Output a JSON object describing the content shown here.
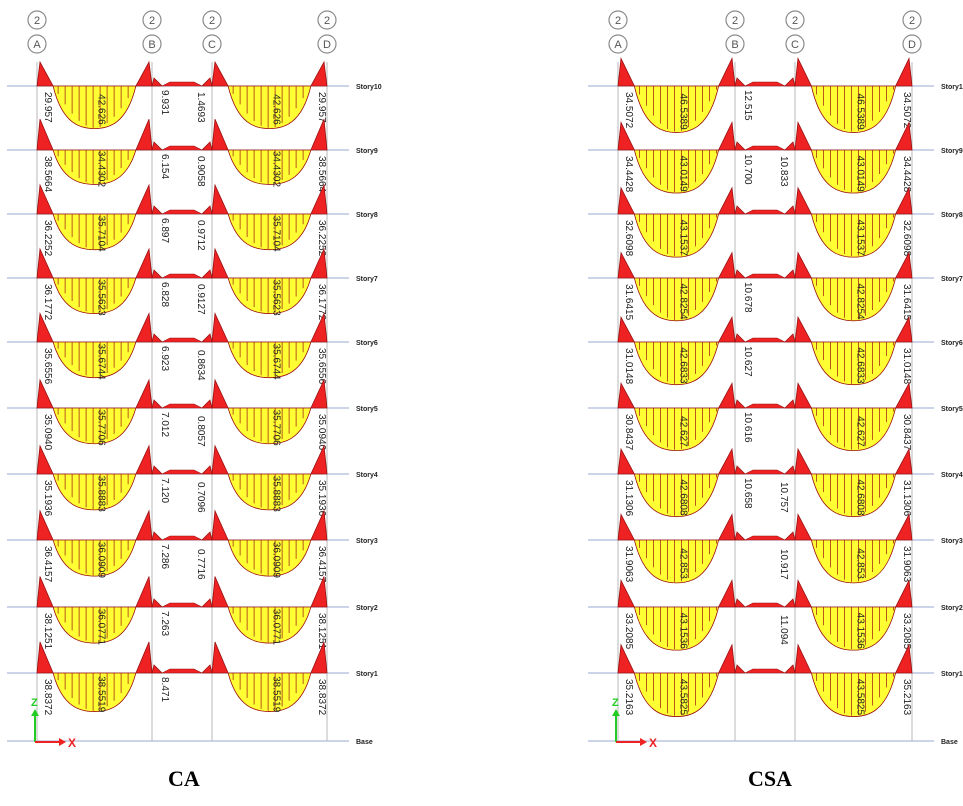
{
  "colors": {
    "gridline": "#9aa9d6",
    "column": "#b8b8b8",
    "fill_yellow": "#ffff33",
    "fill_red": "#ee2222",
    "outline": "#9b1010",
    "axis_z": "#22cc22",
    "axis_x": "#ee2222",
    "bubble": "#8a8a8a"
  },
  "stories": [
    "Story10",
    "Story9",
    "Story8",
    "Story7",
    "Story6",
    "Story5",
    "Story4",
    "Story3",
    "Story2",
    "Story1",
    "Base"
  ],
  "panels": [
    {
      "caption": "CA",
      "axis_top_labels": [
        "2",
        "2",
        "2",
        "2"
      ],
      "axis_bottom_labels": [
        "A",
        "B",
        "C",
        "D"
      ],
      "support_labels": [
        "29.957",
        "29.957"
      ],
      "rows": [
        {
          "left_support": "29.957",
          "left_mid": "42.626",
          "mid_neg": "9.931",
          "mid_pos": "",
          "right_mid": "42.626",
          "right_support": "29.957"
        },
        {
          "left_support": "38.5664",
          "left_mid": "34.4302",
          "mid_neg": "6.154",
          "mid_pos": "1.4693",
          "right_mid": "34.4302",
          "right_support": "38.5664"
        },
        {
          "left_support": "36.2252",
          "left_mid": "35.7104",
          "mid_neg": "6.897",
          "mid_pos": "0.9058",
          "right_mid": "35.7104",
          "right_support": "36.2252"
        },
        {
          "left_support": "36.1772",
          "left_mid": "35.5623",
          "mid_neg": "6.828",
          "mid_pos": "0.9712",
          "right_mid": "35.5623",
          "right_support": "36.1772"
        },
        {
          "left_support": "35.6556",
          "left_mid": "35.6744",
          "mid_neg": "6.923",
          "mid_pos": "0.9127",
          "right_mid": "35.6744",
          "right_support": "35.6556"
        },
        {
          "left_support": "35.0940",
          "left_mid": "35.7706",
          "mid_neg": "7.012",
          "mid_pos": "0.8634",
          "right_mid": "35.7706",
          "right_support": "35.0940"
        },
        {
          "left_support": "35.1936",
          "left_mid": "35.8883",
          "mid_neg": "7.120",
          "mid_pos": "0.8057",
          "right_mid": "35.8883",
          "right_support": "35.1936"
        },
        {
          "left_support": "36.4157",
          "left_mid": "36.0909",
          "mid_neg": "7.286",
          "mid_pos": "0.7096",
          "right_mid": "36.0909",
          "right_support": "36.4157"
        },
        {
          "left_support": "38.1251",
          "left_mid": "36.0771",
          "mid_neg": "7.263",
          "mid_pos": "0.7716",
          "right_mid": "36.0771",
          "right_support": "38.1251"
        },
        {
          "left_support": "38.8372",
          "left_mid": "38.5519",
          "mid_neg": "8.471",
          "mid_pos": "",
          "right_mid": "38.5519",
          "right_support": "38.8372"
        }
      ]
    },
    {
      "caption": "CSA",
      "axis_top_labels": [
        "2",
        "2",
        "2",
        "2"
      ],
      "axis_bottom_labels": [
        "A",
        "B",
        "C",
        "D"
      ],
      "support_labels": [
        "34.5072",
        "34.5072"
      ],
      "rows": [
        {
          "left_support": "34.5072",
          "left_mid": "46.5389",
          "mid_neg": "12.515",
          "mid_pos": "",
          "right_mid": "46.5389",
          "right_support": "34.5072"
        },
        {
          "left_support": "34.4428",
          "left_mid": "43.0149",
          "mid_neg": "10.700",
          "mid_pos": "",
          "right_mid": "43.0149",
          "right_support": "34.4428"
        },
        {
          "left_support": "32.6098",
          "left_mid": "43.1537",
          "mid_neg": "",
          "mid_pos": "10.833",
          "right_mid": "43.1537",
          "right_support": "32.6098"
        },
        {
          "left_support": "31.6415",
          "left_mid": "42.8254",
          "mid_neg": "10.678",
          "mid_pos": "",
          "right_mid": "42.8254",
          "right_support": "31.6415"
        },
        {
          "left_support": "31.0148",
          "left_mid": "42.6833",
          "mid_neg": "10.627",
          "mid_pos": "",
          "right_mid": "42.6833",
          "right_support": "31.0148"
        },
        {
          "left_support": "30.8437",
          "left_mid": "42.627",
          "mid_neg": "10.616",
          "mid_pos": "",
          "right_mid": "42.627",
          "right_support": "30.8437"
        },
        {
          "left_support": "31.1306",
          "left_mid": "42.6808",
          "mid_neg": "10.658",
          "mid_pos": "",
          "right_mid": "42.6808",
          "right_support": "31.1306"
        },
        {
          "left_support": "31.9063",
          "left_mid": "42.853",
          "mid_neg": "",
          "mid_pos": "10.757",
          "right_mid": "42.853",
          "right_support": "31.9063"
        },
        {
          "left_support": "33.2085",
          "left_mid": "43.1536",
          "mid_neg": "",
          "mid_pos": "10.917",
          "right_mid": "43.1536",
          "right_support": "33.2085"
        },
        {
          "left_support": "35.2163",
          "left_mid": "43.5825",
          "mid_neg": "",
          "mid_pos": "11.094",
          "right_mid": "43.5825",
          "right_support": "35.2163"
        }
      ]
    }
  ],
  "axis_labels": {
    "z": "Z",
    "x": "X"
  }
}
